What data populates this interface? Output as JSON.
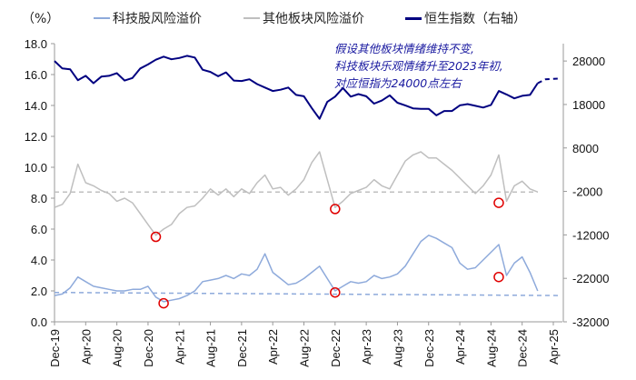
{
  "chart_data": {
    "type": "line",
    "unit_label": "（%）",
    "annotation": "假设其他板块情绪维持不变,\n科技板块乐观情绪升至2023年初,\n对应恒指为24000点左右",
    "left_axis": {
      "range": [
        0,
        18
      ],
      "ticks": [
        "0.0",
        "2.0",
        "4.0",
        "6.0",
        "8.0",
        "10.0",
        "12.0",
        "14.0",
        "16.0",
        "18.0"
      ]
    },
    "right_axis": {
      "range": [
        -32000,
        32000
      ],
      "ticks": [
        "-32000",
        "-22000",
        "-12000",
        "-2000",
        "8000",
        "18000",
        "28000"
      ]
    },
    "x_ticks": [
      "Dec-19",
      "Apr-20",
      "Aug-20",
      "Dec-20",
      "Apr-21",
      "Aug-21",
      "Dec-21",
      "Apr-22",
      "Aug-22",
      "Dec-22",
      "Apr-23",
      "Aug-23",
      "Dec-23",
      "Apr-24",
      "Aug-24",
      "Dec-24",
      "Apr-25"
    ],
    "x_start": "Dec-19",
    "frequency": "monthly",
    "grid": false,
    "legend_placement": "top",
    "series": [
      {
        "name": "科技股风险溢价",
        "axis": "left",
        "color": "#8eaadb",
        "values": [
          1.7,
          1.8,
          2.2,
          2.9,
          2.6,
          2.3,
          2.2,
          2.1,
          2.0,
          2.0,
          2.1,
          2.1,
          2.3,
          1.6,
          1.3,
          1.4,
          1.5,
          1.7,
          2.0,
          2.6,
          2.7,
          2.8,
          3.0,
          2.8,
          3.1,
          3.0,
          3.4,
          4.4,
          3.2,
          2.8,
          2.4,
          2.5,
          2.8,
          3.2,
          3.6,
          2.8,
          2.0,
          2.3,
          2.6,
          2.5,
          2.6,
          3.0,
          2.8,
          2.9,
          3.1,
          3.6,
          4.4,
          5.2,
          5.6,
          5.4,
          5.1,
          4.8,
          3.8,
          3.4,
          3.5,
          4.0,
          4.5,
          5.0,
          3.0,
          3.8,
          4.2,
          3.2,
          2.0
        ],
        "reference_dashed": [
          [
            "Dec-19",
            1.9
          ],
          [
            "May-25",
            1.7
          ]
        ]
      },
      {
        "name": "其他板块风险溢价",
        "axis": "left",
        "color": "#bfbfbf",
        "values": [
          7.4,
          7.6,
          8.3,
          10.2,
          9.0,
          8.8,
          8.5,
          8.3,
          7.8,
          8.0,
          7.7,
          7.0,
          6.3,
          5.6,
          6.0,
          6.3,
          7.0,
          7.4,
          7.5,
          8.0,
          8.6,
          8.2,
          8.6,
          8.1,
          8.6,
          8.3,
          9.0,
          9.5,
          8.6,
          8.7,
          8.2,
          8.6,
          9.2,
          10.3,
          11.0,
          9.2,
          7.4,
          7.8,
          8.3,
          8.5,
          8.7,
          9.2,
          8.8,
          8.6,
          9.5,
          10.4,
          10.8,
          11.0,
          10.6,
          10.6,
          10.2,
          9.8,
          9.3,
          8.8,
          8.3,
          8.8,
          9.5,
          10.8,
          7.8,
          8.8,
          9.1,
          8.6,
          8.4
        ],
        "reference_dashed": [
          [
            "Dec-19",
            8.4
          ],
          [
            "Feb-25",
            8.4
          ]
        ]
      },
      {
        "name": "恒生指数（右轴）",
        "axis": "right",
        "color": "#000080",
        "values": [
          28000,
          26300,
          26100,
          23600,
          24600,
          22900,
          24400,
          24600,
          25200,
          23500,
          24100,
          26300,
          27200,
          28300,
          29000,
          28400,
          28700,
          29200,
          28800,
          26000,
          25500,
          24500,
          25400,
          23500,
          23400,
          23800,
          22700,
          21900,
          21100,
          21400,
          21900,
          20200,
          19900,
          17200,
          14700,
          18600,
          19800,
          21800,
          19800,
          20400,
          19900,
          18200,
          18900,
          20100,
          18400,
          17800,
          17100,
          17000,
          17000,
          15500,
          16500,
          16500,
          17800,
          18100,
          17700,
          17300,
          17900,
          21100,
          20300,
          19400,
          20000,
          20200,
          22900
        ],
        "projection_dashed": [
          [
            "Feb-25",
            22900
          ],
          [
            "Mar-25",
            23800
          ],
          [
            "May-25",
            24000
          ]
        ]
      }
    ],
    "markers": [
      {
        "date": "Jan-21",
        "value": 5.5
      },
      {
        "date": "Dec-22",
        "value": 7.3
      },
      {
        "date": "Sep-24",
        "value": 7.7
      },
      {
        "date": "Feb-21",
        "value": 1.2
      },
      {
        "date": "Dec-22",
        "value": 1.9
      },
      {
        "date": "Sep-24",
        "value": 2.9
      }
    ],
    "marker_color": "#e00000"
  }
}
